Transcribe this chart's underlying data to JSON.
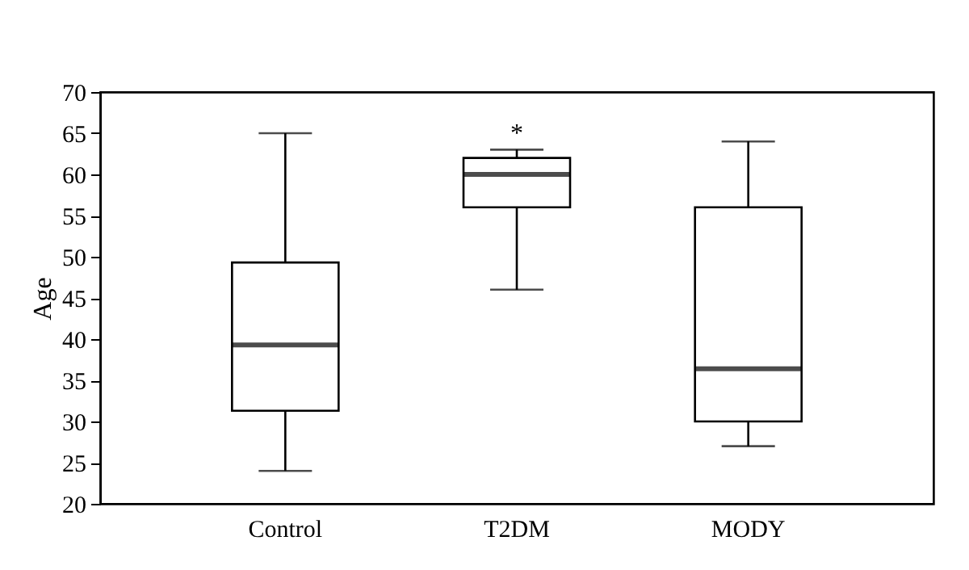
{
  "chart_data": {
    "type": "box",
    "ylabel": "Age",
    "categories": [
      "Control",
      "T2DM",
      "MODY"
    ],
    "boxes": [
      {
        "low": 24,
        "q1": 31.3,
        "median": 39.3,
        "q3": 49.3,
        "high": 65
      },
      {
        "low": 46,
        "q1": 56,
        "median": 60,
        "q3": 62,
        "high": 63
      },
      {
        "low": 27,
        "q1": 30,
        "median": 36.4,
        "q3": 56,
        "high": 64
      }
    ],
    "ylim": [
      20,
      70
    ],
    "yticks": [
      20,
      25,
      30,
      35,
      40,
      45,
      50,
      55,
      60,
      65,
      70
    ],
    "grid": false,
    "annotations": [
      "*"
    ]
  }
}
